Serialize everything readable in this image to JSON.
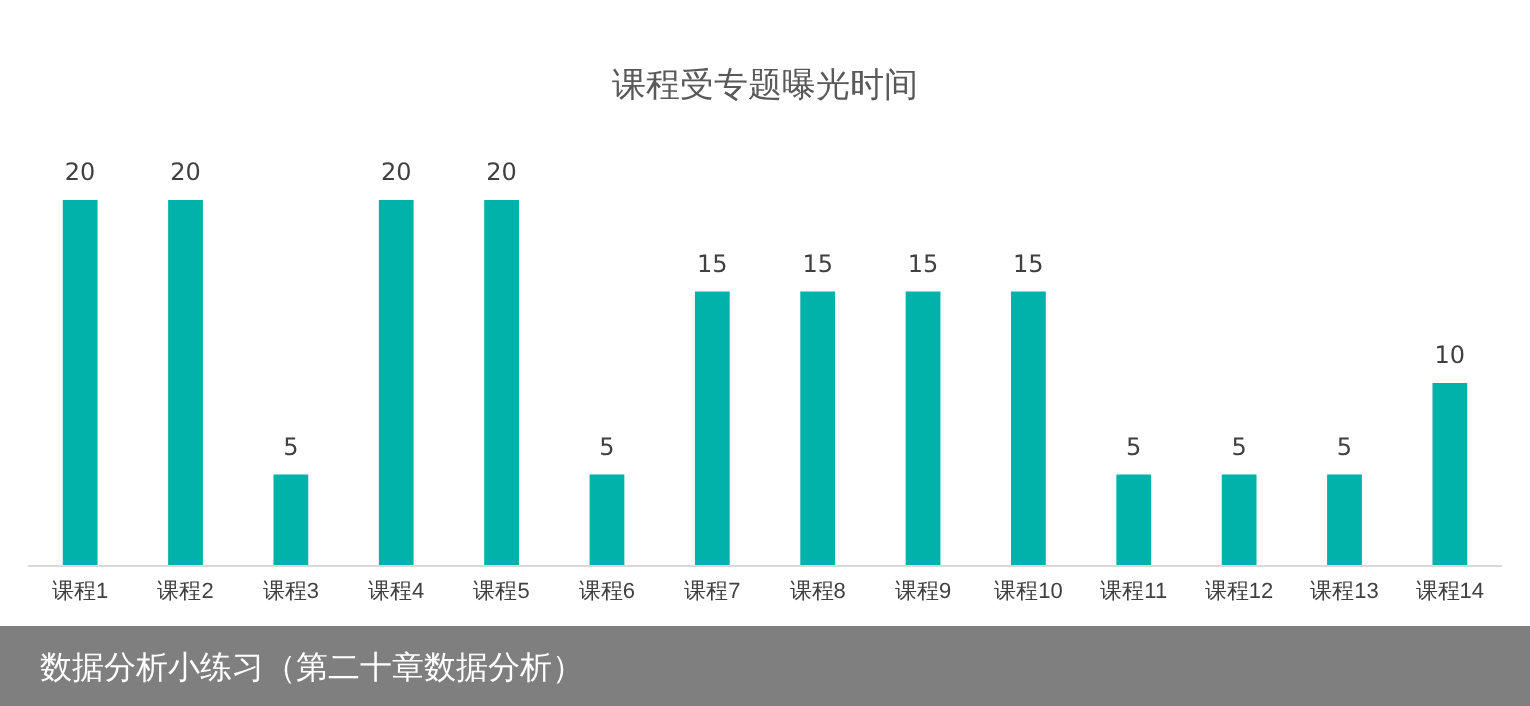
{
  "chart_data": {
    "type": "bar",
    "title": "课程受专题曝光时间",
    "categories": [
      "课程1",
      "课程2",
      "课程3",
      "课程4",
      "课程5",
      "课程6",
      "课程7",
      "课程8",
      "课程9",
      "课程10",
      "课程11",
      "课程12",
      "课程13",
      "课程14"
    ],
    "values": [
      20,
      20,
      5,
      20,
      20,
      5,
      15,
      15,
      15,
      15,
      5,
      5,
      5,
      10
    ],
    "color": "#00b2a9",
    "data_labels": true,
    "annotations": [
      "数据分析小练习（第二十章数据分析）"
    ]
  }
}
